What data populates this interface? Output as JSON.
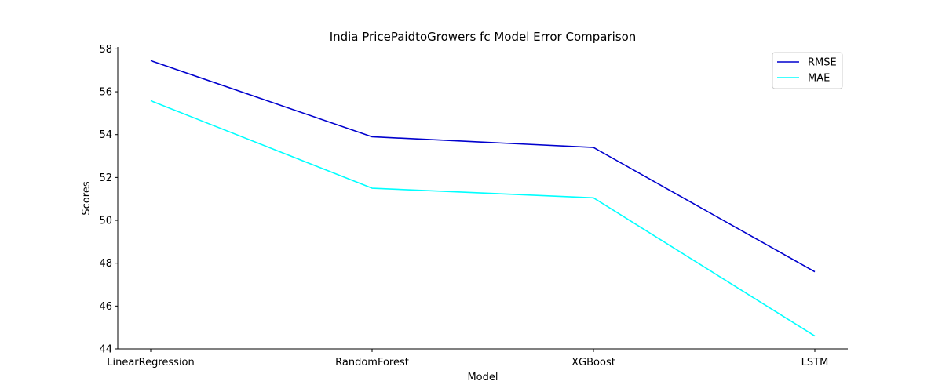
{
  "chart_data": {
    "type": "line",
    "title": "India PricePaidtoGrowers fc Model Error Comparison",
    "xlabel": "Model",
    "ylabel": "Scores",
    "categories": [
      "LinearRegression",
      "RandomForest",
      "XGBoost",
      "LSTM"
    ],
    "series": [
      {
        "name": "RMSE",
        "color": "#0000cd",
        "values": [
          57.45,
          53.9,
          53.4,
          47.6
        ]
      },
      {
        "name": "MAE",
        "color": "#00ffff",
        "values": [
          55.58,
          51.5,
          51.05,
          44.6
        ]
      }
    ],
    "ylim": [
      44,
      58
    ],
    "yticks": [
      44,
      46,
      48,
      50,
      52,
      54,
      56,
      58
    ],
    "grid": false,
    "legend_position": "top-right"
  }
}
